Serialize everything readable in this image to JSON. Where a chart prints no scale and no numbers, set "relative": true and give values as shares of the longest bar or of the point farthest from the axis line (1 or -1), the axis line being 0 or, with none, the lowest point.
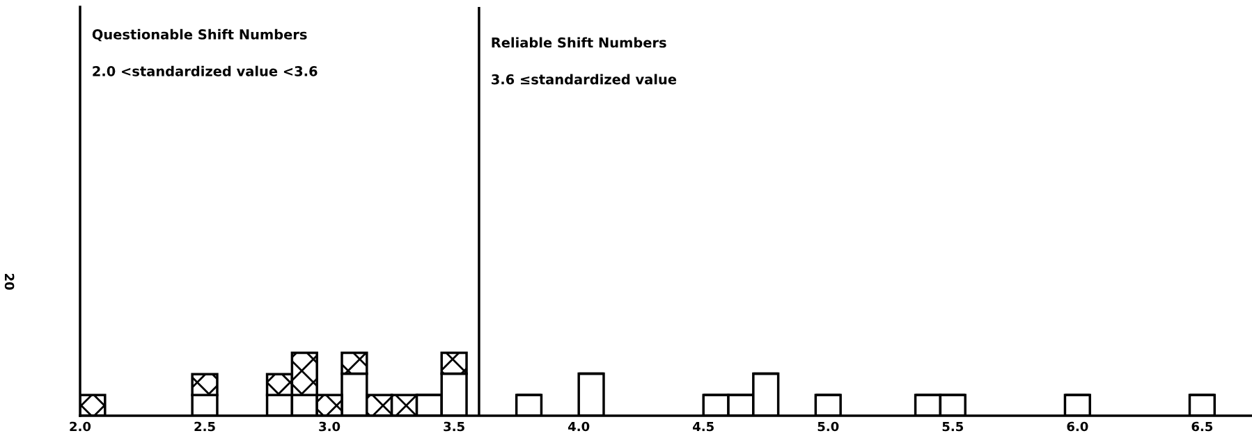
{
  "chart_data": {
    "type": "bar",
    "stacked": true,
    "relative": true,
    "x": [
      2.05,
      2.5,
      2.8,
      2.9,
      3.0,
      3.1,
      3.2,
      3.3,
      3.4,
      3.5,
      3.8,
      4.05,
      4.55,
      4.65,
      4.75,
      5.0,
      5.4,
      5.5,
      6.0,
      6.5
    ],
    "series": [
      {
        "color": "#000000",
        "values": [
          0,
          0.33,
          0.33,
          0.33,
          0,
          0.67,
          0,
          0,
          0.33,
          0.67,
          0.33,
          0.67,
          0.33,
          0.33,
          0.67,
          0.33,
          0.33,
          0.33,
          0.33,
          0.33
        ]
      },
      {
        "color": "#000000",
        "values": [
          0.33,
          0.33,
          0.33,
          0.67,
          0.33,
          0.33,
          0.33,
          0.33,
          0,
          0.33,
          0,
          0,
          0,
          0,
          0,
          0,
          0,
          0,
          0,
          0
        ]
      }
    ],
    "xlim": [
      2.0,
      6.7
    ],
    "xticks": [
      {
        "value": 2,
        "label": "2.0"
      },
      2.5,
      {
        "value": 3,
        "label": "3.0"
      },
      3.5,
      {
        "value": 4,
        "label": "4.0"
      },
      4.5,
      {
        "value": 5,
        "label": "5.0"
      },
      5.5,
      {
        "value": 6,
        "label": "6.0"
      },
      6.5
    ],
    "ref_lines": [
      {
        "axis": "x",
        "value": 3.6,
        "color": "#000000"
      }
    ],
    "annotations": [
      "Questionable Shift Numbers",
      "2.0 <standardized value <3.6",
      "Reliable Shift Numbers",
      "3.6 ≤standardized value",
      "20"
    ],
    "grid": false,
    "legend": false
  }
}
